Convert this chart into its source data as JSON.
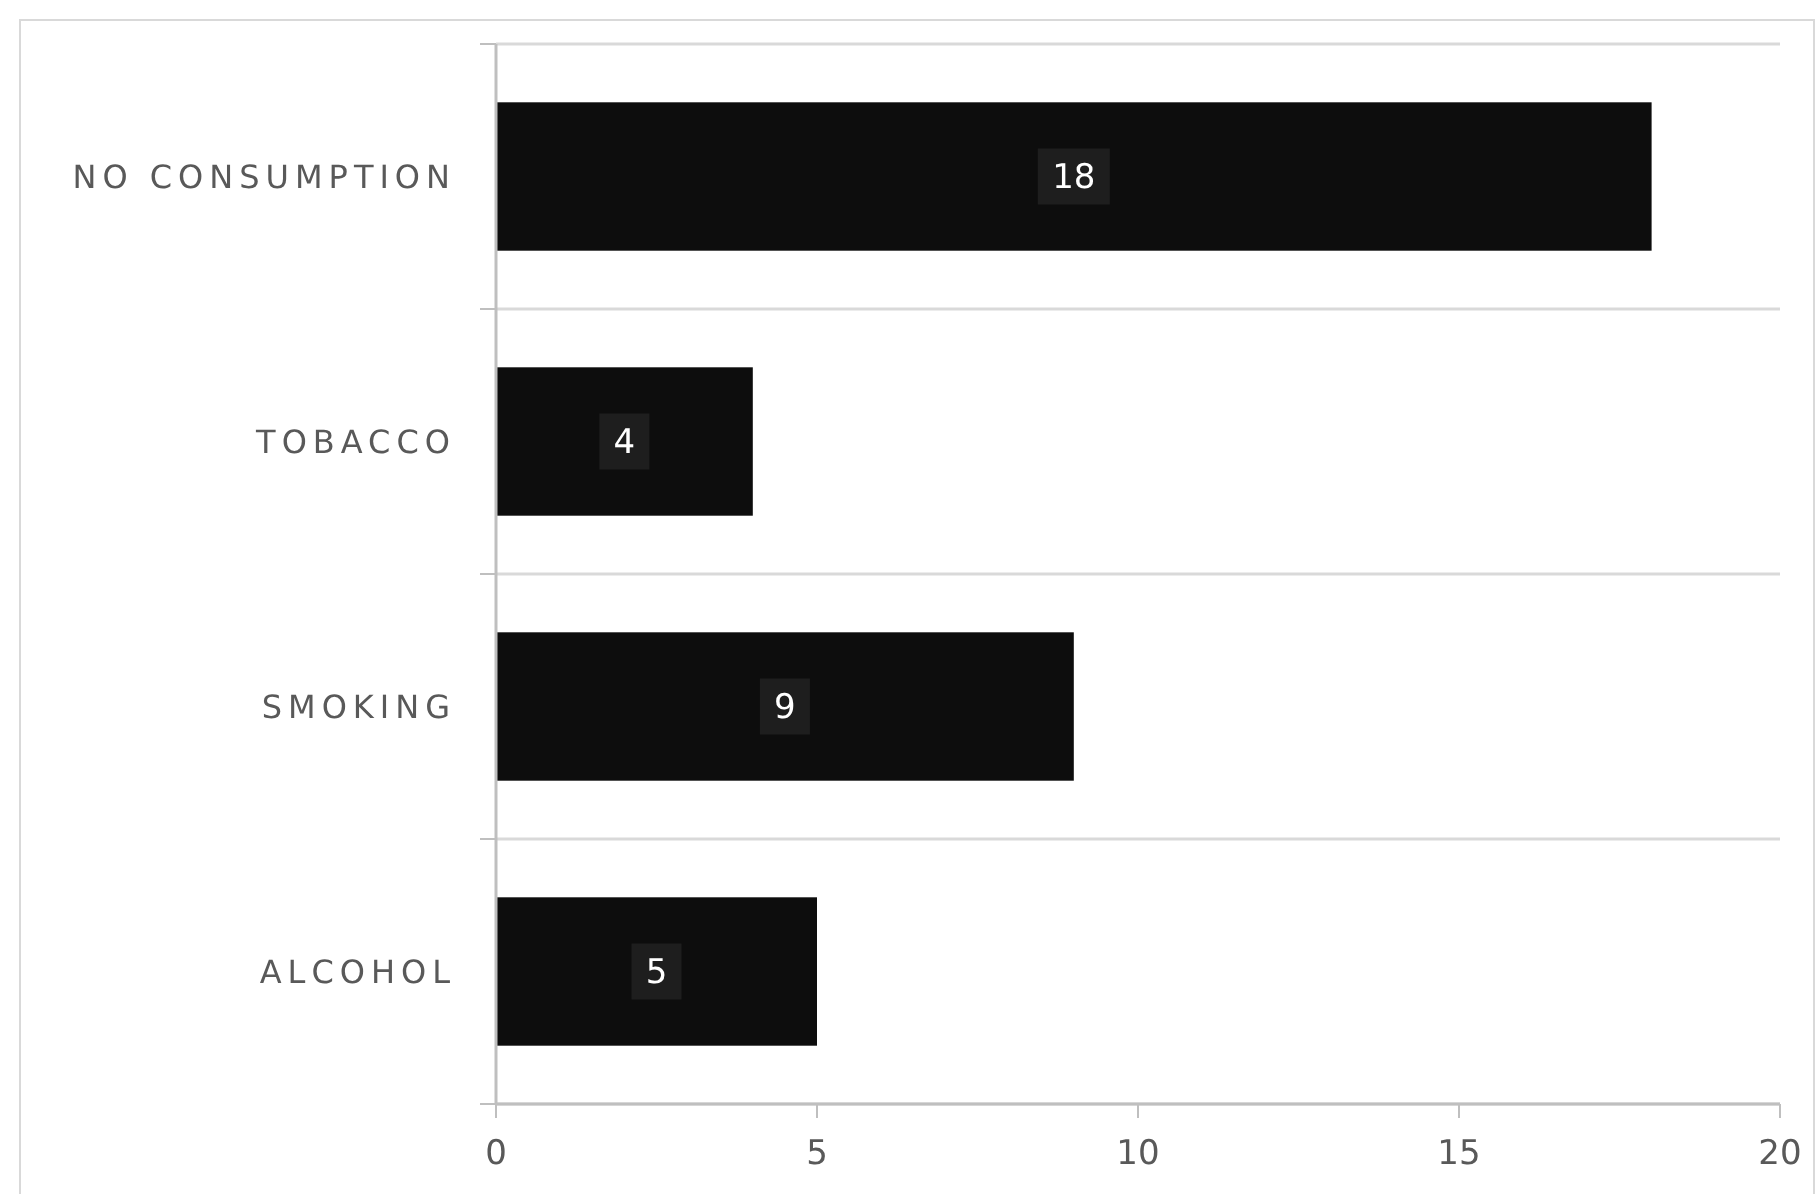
{
  "chart_data": {
    "type": "bar",
    "orientation": "horizontal",
    "categories": [
      "NO CONSUMPTION",
      "TOBACCO",
      "SMOKING",
      "ALCOHOL"
    ],
    "values": [
      18,
      4,
      9,
      5
    ],
    "color": "#0d0d0d",
    "xlim": [
      0,
      20
    ],
    "xticks": [
      0,
      5,
      10,
      15,
      20
    ],
    "grid": "y",
    "data_labels": true
  }
}
